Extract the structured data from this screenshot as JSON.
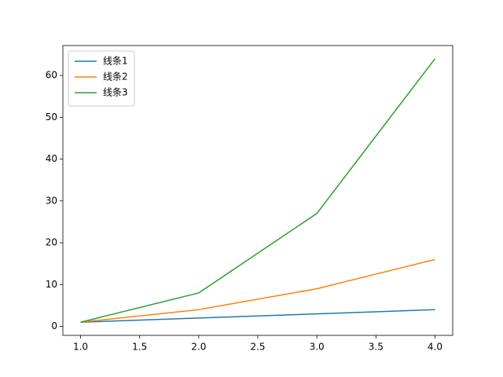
{
  "chart_data": {
    "type": "line",
    "x": [
      1,
      2,
      3,
      4
    ],
    "series": [
      {
        "name": "线条1",
        "color": "#1f77b4",
        "values": [
          1,
          2,
          3,
          4
        ]
      },
      {
        "name": "线条2",
        "color": "#ff7f0e",
        "values": [
          1,
          4,
          9,
          16
        ]
      },
      {
        "name": "线条3",
        "color": "#2ca02c",
        "values": [
          1,
          8,
          27,
          64
        ]
      }
    ],
    "xlim": [
      0.85,
      4.15
    ],
    "xticks": [
      {
        "value": 1,
        "label": "1.0"
      },
      1.5,
      {
        "value": 2,
        "label": "2.0"
      },
      2.5,
      {
        "value": 3,
        "label": "3.0"
      },
      3.5,
      {
        "value": 4,
        "label": "4.0"
      }
    ],
    "ylim": [
      -2.15,
      67.15
    ],
    "yticks": [
      0,
      10,
      20,
      30,
      40,
      50,
      60
    ],
    "legend": "upper left",
    "grid": false
  }
}
